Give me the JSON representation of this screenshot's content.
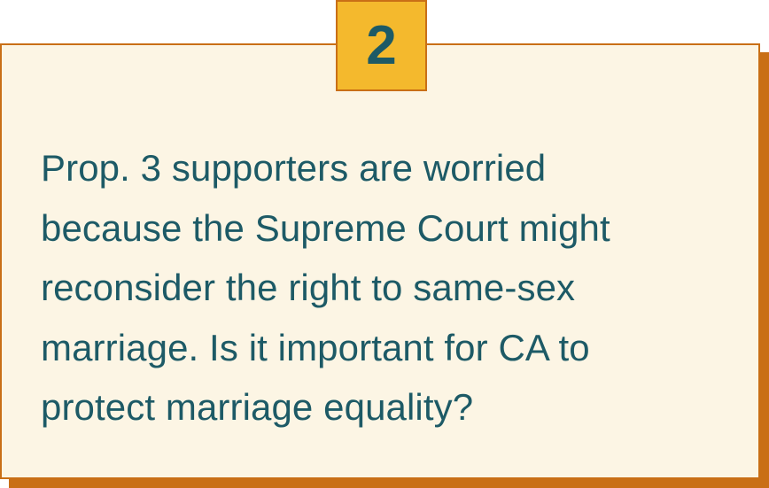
{
  "badge": {
    "number": "2"
  },
  "question": {
    "lines": [
      "Prop. 3 supporters are worried",
      "because the Supreme Court might",
      "reconsider the right to same-sex",
      "marriage. Is it important for CA to",
      "protect marriage equality?"
    ]
  },
  "colors": {
    "card_background": "#fcf5e4",
    "border": "#c96f16",
    "badge_background": "#f4b92d",
    "text": "#1d5a66"
  }
}
